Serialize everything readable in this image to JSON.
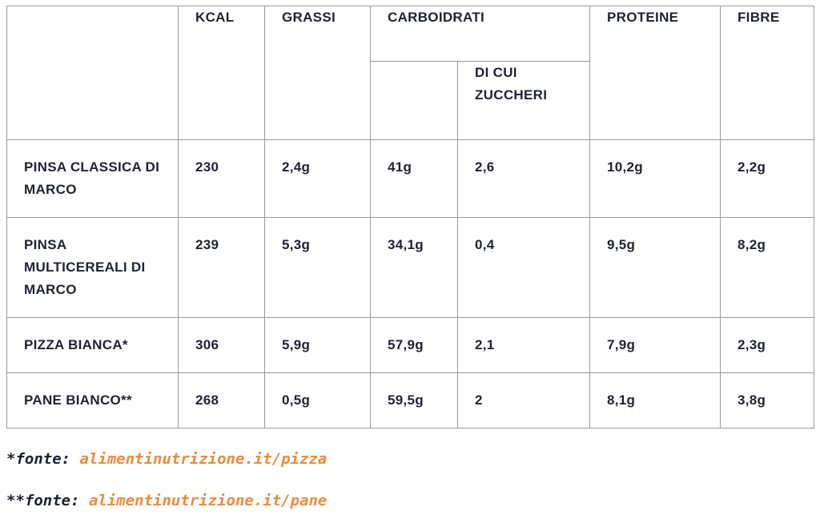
{
  "table": {
    "headers": {
      "kcal": "KCAL",
      "grassi": "GRASSI",
      "carboidrati": "CARBOIDRATI",
      "di_cui_zuccheri": "DI CUI ZUCCHERI",
      "proteine": "PROTEINE",
      "fibre": "FIBRE"
    },
    "rows": [
      {
        "name": "PINSA CLASSICA DI MARCO",
        "kcal": "230",
        "grassi": "2,4g",
        "carboidrati": "41g",
        "zuccheri": "2,6",
        "proteine": "10,2g",
        "fibre": "2,2g"
      },
      {
        "name": "PINSA MULTICEREALI DI MARCO",
        "kcal": "239",
        "grassi": "5,3g",
        "carboidrati": "34,1g",
        "zuccheri": "0,4",
        "proteine": "9,5g",
        "fibre": "8,2g"
      },
      {
        "name": "PIZZA BIANCA*",
        "kcal": "306",
        "grassi": "5,9g",
        "carboidrati": "57,9g",
        "zuccheri": "2,1",
        "proteine": "7,9g",
        "fibre": "2,3g"
      },
      {
        "name": "PANE BIANCO**",
        "kcal": "268",
        "grassi": "0,5g",
        "carboidrati": "59,5g",
        "zuccheri": "2",
        "proteine": "8,1g",
        "fibre": "3,8g"
      }
    ]
  },
  "notes": [
    {
      "prefix": "*fonte: ",
      "link": "alimentinutrizione.it/pizza"
    },
    {
      "prefix": "**fonte: ",
      "link": "alimentinutrizione.it/pane"
    }
  ],
  "colors": {
    "text": "#1f2233",
    "border": "#9a9a9a",
    "link": "#ee8a3c"
  }
}
